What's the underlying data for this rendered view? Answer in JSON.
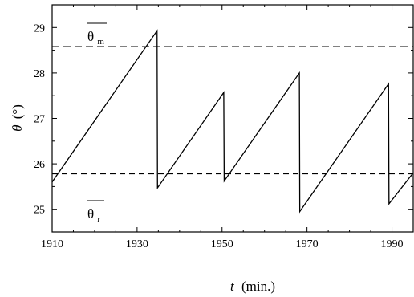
{
  "chart_data": {
    "type": "line",
    "xlabel": {
      "symbol": "t",
      "unit": "(min.)"
    },
    "ylabel": {
      "symbol": "θ",
      "unit": "(°)"
    },
    "xlim": [
      1910,
      1995
    ],
    "ylim": [
      24.5,
      29.5
    ],
    "x_ticks": [
      1910,
      1930,
      1950,
      1970,
      1990
    ],
    "x_tick_labels": [
      "1910",
      "1930",
      "1950",
      "1970",
      "1990"
    ],
    "y_ticks": [
      25,
      26,
      27,
      28,
      29
    ],
    "y_tick_labels": [
      "25",
      "26",
      "27",
      "28",
      "29"
    ],
    "grid": false,
    "series": [
      {
        "style": "solid",
        "color": "#000000",
        "x": [
          1910,
          1934.7,
          1934.8,
          1950.4,
          1950.5,
          1968.2,
          1968.3,
          1989.2,
          1989.3,
          1995
        ],
        "y": [
          25.6,
          28.93,
          25.47,
          27.57,
          25.62,
          28.0,
          24.95,
          27.76,
          25.12,
          25.8
        ]
      }
    ],
    "reference_lines": [
      {
        "y": 28.58,
        "style": "dashed",
        "label": {
          "base": "θ",
          "subscript": "m"
        }
      },
      {
        "y": 25.78,
        "style": "dashed",
        "label": {
          "base": "θ",
          "subscript": "r"
        }
      }
    ]
  }
}
